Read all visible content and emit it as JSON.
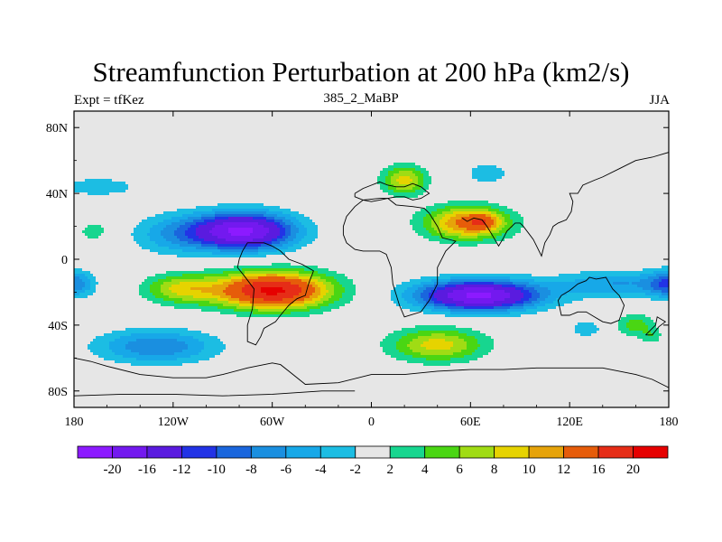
{
  "chart_data": {
    "type": "heatmap",
    "title": "Streamfunction Perturbation at 200 hPa (km2/s)",
    "left_label": "Expt = tfKez",
    "center_label": "385_2_MaBP",
    "right_label": "JJA",
    "x_ticks": [
      {
        "value": -180,
        "label": "180"
      },
      {
        "value": -120,
        "label": "120W"
      },
      {
        "value": -60,
        "label": "60W"
      },
      {
        "value": 0,
        "label": "0"
      },
      {
        "value": 60,
        "label": "60E"
      },
      {
        "value": 120,
        "label": "120E"
      },
      {
        "value": 180,
        "label": "180"
      }
    ],
    "y_ticks": [
      {
        "value": 80,
        "label": "80N"
      },
      {
        "value": 40,
        "label": "40N"
      },
      {
        "value": 0,
        "label": "0"
      },
      {
        "value": -40,
        "label": "40S"
      },
      {
        "value": -80,
        "label": "80S"
      }
    ],
    "xlim": [
      -180,
      180
    ],
    "ylim": [
      -90,
      90
    ],
    "colorbar": {
      "levels": [
        -20,
        -16,
        -12,
        -10,
        -8,
        -6,
        -4,
        -2,
        2,
        4,
        6,
        8,
        10,
        12,
        16,
        20
      ],
      "labels": [
        "-20",
        "-16",
        "-12",
        "-10",
        "-8",
        "-6",
        "-4",
        "-2",
        "2",
        "4",
        "6",
        "8",
        "10",
        "12",
        "16",
        "20"
      ],
      "colors": [
        "#8c1aff",
        "#7319ef",
        "#5a1bdf",
        "#2233e6",
        "#1a66dd",
        "#1a8fe0",
        "#17a8e8",
        "#1cbde3",
        "#e6e6e6",
        "#17d68f",
        "#4ad613",
        "#a0dc14",
        "#e6d300",
        "#e6a30a",
        "#e65c0a",
        "#e62d17",
        "#e60000"
      ]
    },
    "features": [
      {
        "lon": -78,
        "lat": 17,
        "slon": 30,
        "slat": 11,
        "amp": -21
      },
      {
        "lon": -120,
        "lat": 15,
        "slon": 25,
        "slat": 12,
        "amp": -5
      },
      {
        "lon": -165,
        "lat": 44,
        "slon": 25,
        "slat": 6,
        "amp": -3.5
      },
      {
        "lon": -60,
        "lat": -19,
        "slon": 34,
        "slat": 11,
        "amp": 21
      },
      {
        "lon": -115,
        "lat": -18,
        "slon": 22,
        "slat": 9,
        "amp": 8
      },
      {
        "lon": -180,
        "lat": -15,
        "slon": 12,
        "slat": 8,
        "amp": -8
      },
      {
        "lon": 180,
        "lat": -15,
        "slon": 12,
        "slat": 8,
        "amp": -8
      },
      {
        "lon": -168,
        "lat": 17,
        "slon": 8,
        "slat": 5,
        "amp": 4
      },
      {
        "lon": 65,
        "lat": -22,
        "slon": 36,
        "slat": 9,
        "amp": -21
      },
      {
        "lon": 150,
        "lat": -15,
        "slon": 38,
        "slat": 8,
        "amp": -6
      },
      {
        "lon": 58,
        "lat": 22,
        "slon": 25,
        "slat": 10,
        "amp": 13
      },
      {
        "lon": 20,
        "lat": 48,
        "slon": 13,
        "slat": 9,
        "amp": 9
      },
      {
        "lon": 68,
        "lat": 23,
        "slon": 9,
        "slat": 5,
        "amp": 6
      },
      {
        "lon": 70,
        "lat": 52,
        "slon": 12,
        "slat": 6,
        "amp": -4
      },
      {
        "lon": 40,
        "lat": -52,
        "slon": 28,
        "slat": 10,
        "amp": 9
      },
      {
        "lon": -130,
        "lat": -53,
        "slon": 35,
        "slat": 10,
        "amp": -8
      },
      {
        "lon": 160,
        "lat": -40,
        "slon": 12,
        "slat": 7,
        "amp": 5
      },
      {
        "lon": 130,
        "lat": -42,
        "slon": 9,
        "slat": 5,
        "amp": -4
      },
      {
        "lon": 170,
        "lat": -47,
        "slon": 6,
        "slat": 5,
        "amp": 3
      }
    ],
    "coastlines": [
      [
        [
          -10,
          40
        ],
        [
          -5,
          43
        ],
        [
          0,
          45
        ],
        [
          5,
          47
        ],
        [
          10,
          45
        ],
        [
          15,
          44
        ],
        [
          20,
          44
        ],
        [
          25,
          46
        ],
        [
          30,
          44
        ],
        [
          35,
          40
        ],
        [
          30,
          37
        ],
        [
          25,
          36
        ],
        [
          20,
          38
        ],
        [
          15,
          38
        ],
        [
          10,
          37
        ],
        [
          5,
          36
        ],
        [
          0,
          35
        ],
        [
          -5,
          36
        ],
        [
          -10,
          38
        ],
        [
          -10,
          40
        ]
      ],
      [
        [
          -17,
          15
        ],
        [
          -17,
          20
        ],
        [
          -15,
          26
        ],
        [
          -10,
          32
        ],
        [
          -5,
          36
        ],
        [
          5,
          37
        ],
        [
          10,
          37
        ],
        [
          15,
          33
        ],
        [
          25,
          32
        ],
        [
          32,
          31
        ],
        [
          35,
          28
        ],
        [
          40,
          20
        ],
        [
          43,
          13
        ],
        [
          51,
          11
        ],
        [
          45,
          5
        ],
        [
          40,
          -5
        ],
        [
          40,
          -15
        ],
        [
          35,
          -25
        ],
        [
          30,
          -32
        ],
        [
          20,
          -35
        ],
        [
          17,
          -28
        ],
        [
          13,
          -15
        ],
        [
          12,
          -5
        ],
        [
          9,
          3
        ],
        [
          5,
          5
        ],
        [
          0,
          5
        ],
        [
          -5,
          5
        ],
        [
          -10,
          6
        ],
        [
          -15,
          10
        ],
        [
          -17,
          15
        ]
      ],
      [
        [
          55,
          25
        ],
        [
          58,
          23
        ],
        [
          62,
          25
        ],
        [
          67,
          24
        ],
        [
          70,
          20
        ],
        [
          73,
          15
        ],
        [
          77,
          8
        ],
        [
          80,
          13
        ],
        [
          82,
          17
        ],
        [
          87,
          22
        ],
        [
          90,
          22
        ],
        [
          92,
          20
        ],
        [
          95,
          16
        ],
        [
          98,
          12
        ],
        [
          100,
          8
        ],
        [
          103,
          2
        ],
        [
          105,
          10
        ],
        [
          108,
          15
        ],
        [
          110,
          20
        ],
        [
          113,
          22
        ],
        [
          118,
          24
        ],
        [
          121,
          29
        ],
        [
          122,
          35
        ],
        [
          120,
          40
        ],
        [
          125,
          40
        ],
        [
          128,
          45
        ],
        [
          135,
          48
        ],
        [
          140,
          50
        ],
        [
          150,
          55
        ],
        [
          160,
          60
        ],
        [
          170,
          62
        ],
        [
          180,
          65
        ]
      ],
      [
        [
          -55,
          5
        ],
        [
          -50,
          0
        ],
        [
          -42,
          -3
        ],
        [
          -35,
          -7
        ],
        [
          -38,
          -15
        ],
        [
          -40,
          -22
        ],
        [
          -45,
          -24
        ],
        [
          -50,
          -28
        ],
        [
          -55,
          -34
        ],
        [
          -58,
          -38
        ],
        [
          -65,
          -42
        ],
        [
          -67,
          -47
        ],
        [
          -70,
          -52
        ],
        [
          -75,
          -50
        ],
        [
          -75,
          -40
        ],
        [
          -72,
          -30
        ],
        [
          -71,
          -18
        ],
        [
          -77,
          -10
        ],
        [
          -81,
          -5
        ],
        [
          -80,
          0
        ],
        [
          -78,
          5
        ],
        [
          -75,
          10
        ],
        [
          -65,
          10
        ],
        [
          -60,
          8
        ],
        [
          -55,
          5
        ]
      ],
      [
        [
          -180,
          -60
        ],
        [
          -170,
          -62
        ],
        [
          -160,
          -65
        ],
        [
          -140,
          -70
        ],
        [
          -120,
          -72
        ],
        [
          -100,
          -72
        ],
        [
          -90,
          -70
        ],
        [
          -75,
          -66
        ],
        [
          -60,
          -63
        ],
        [
          -55,
          -64
        ],
        [
          -50,
          -68
        ],
        [
          -40,
          -76
        ],
        [
          -20,
          -75
        ],
        [
          0,
          -70
        ],
        [
          20,
          -70
        ],
        [
          40,
          -68
        ],
        [
          60,
          -67
        ],
        [
          80,
          -67
        ],
        [
          100,
          -66
        ],
        [
          120,
          -66
        ],
        [
          140,
          -66
        ],
        [
          160,
          -70
        ],
        [
          170,
          -73
        ],
        [
          180,
          -78
        ]
      ],
      [
        [
          -180,
          -83
        ],
        [
          -150,
          -82
        ],
        [
          -120,
          -82
        ],
        [
          -90,
          -83
        ],
        [
          -60,
          -82
        ],
        [
          -30,
          -80
        ],
        [
          -10,
          -80
        ]
      ],
      [
        [
          115,
          -22
        ],
        [
          113,
          -25
        ],
        [
          115,
          -34
        ],
        [
          120,
          -34
        ],
        [
          125,
          -32
        ],
        [
          130,
          -32
        ],
        [
          135,
          -35
        ],
        [
          140,
          -38
        ],
        [
          145,
          -39
        ],
        [
          150,
          -37
        ],
        [
          153,
          -28
        ],
        [
          150,
          -22
        ],
        [
          146,
          -18
        ],
        [
          142,
          -11
        ],
        [
          136,
          -12
        ],
        [
          132,
          -11
        ],
        [
          130,
          -13
        ],
        [
          125,
          -15
        ],
        [
          120,
          -19
        ],
        [
          115,
          -22
        ]
      ],
      [
        [
          166,
          -46
        ],
        [
          170,
          -46
        ],
        [
          174,
          -41
        ],
        [
          178,
          -38
        ],
        [
          173,
          -35
        ],
        [
          172,
          -40
        ],
        [
          168,
          -44
        ],
        [
          166,
          -46
        ]
      ]
    ]
  }
}
